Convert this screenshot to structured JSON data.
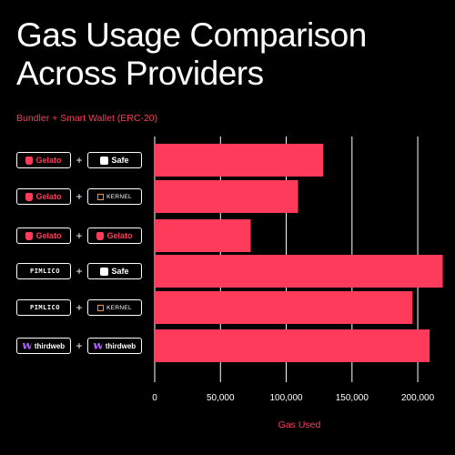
{
  "title_lines": [
    "Gas Usage Comparison",
    "Across Providers"
  ],
  "subtitle": "Bundler + Smart Wallet (ERC-20)",
  "colors": {
    "bar": "#ff3b5c",
    "accent": "#ff3b5c",
    "grid": "#ffffff",
    "background": "#000000"
  },
  "rows": [
    {
      "bundler": "Gelato",
      "bundler_icon": "gelato-logo-icon",
      "wallet": "Safe",
      "wallet_icon": "safe-logo-icon",
      "plus": "+"
    },
    {
      "bundler": "Gelato",
      "bundler_icon": "gelato-logo-icon",
      "wallet": "KERNEL",
      "wallet_icon": "kernel-logo-icon",
      "plus": "+"
    },
    {
      "bundler": "Gelato",
      "bundler_icon": "gelato-logo-icon",
      "wallet": "Gelato",
      "wallet_icon": "gelato-logo-icon",
      "plus": "+"
    },
    {
      "bundler": "PIMLICO",
      "bundler_icon": "pimlico-logo-icon",
      "wallet": "Safe",
      "wallet_icon": "safe-logo-icon",
      "plus": "+"
    },
    {
      "bundler": "PIMLICO",
      "bundler_icon": "pimlico-logo-icon",
      "wallet": "KERNEL",
      "wallet_icon": "kernel-logo-icon",
      "plus": "+"
    },
    {
      "bundler": "thirdweb",
      "bundler_icon": "thirdweb-logo-icon",
      "wallet": "thirdweb",
      "wallet_icon": "thirdweb-logo-icon",
      "plus": "+"
    }
  ],
  "chart_data": {
    "type": "bar",
    "orientation": "horizontal",
    "categories": [
      "Gelato + Safe",
      "Gelato + KERNEL",
      "Gelato + Gelato",
      "PIMLICO + Safe",
      "PIMLICO + KERNEL",
      "thirdweb + thirdweb"
    ],
    "values": [
      128000,
      109000,
      73000,
      219000,
      196000,
      209000
    ],
    "xlabel": "Gas Used",
    "xlim": [
      0,
      220000
    ],
    "xticks": [
      0,
      50000,
      100000,
      150000,
      200000
    ],
    "xtick_labels": [
      "0",
      "50,000",
      "100,000",
      "150,000",
      "200,000"
    ],
    "grid": true,
    "legend": "none"
  }
}
